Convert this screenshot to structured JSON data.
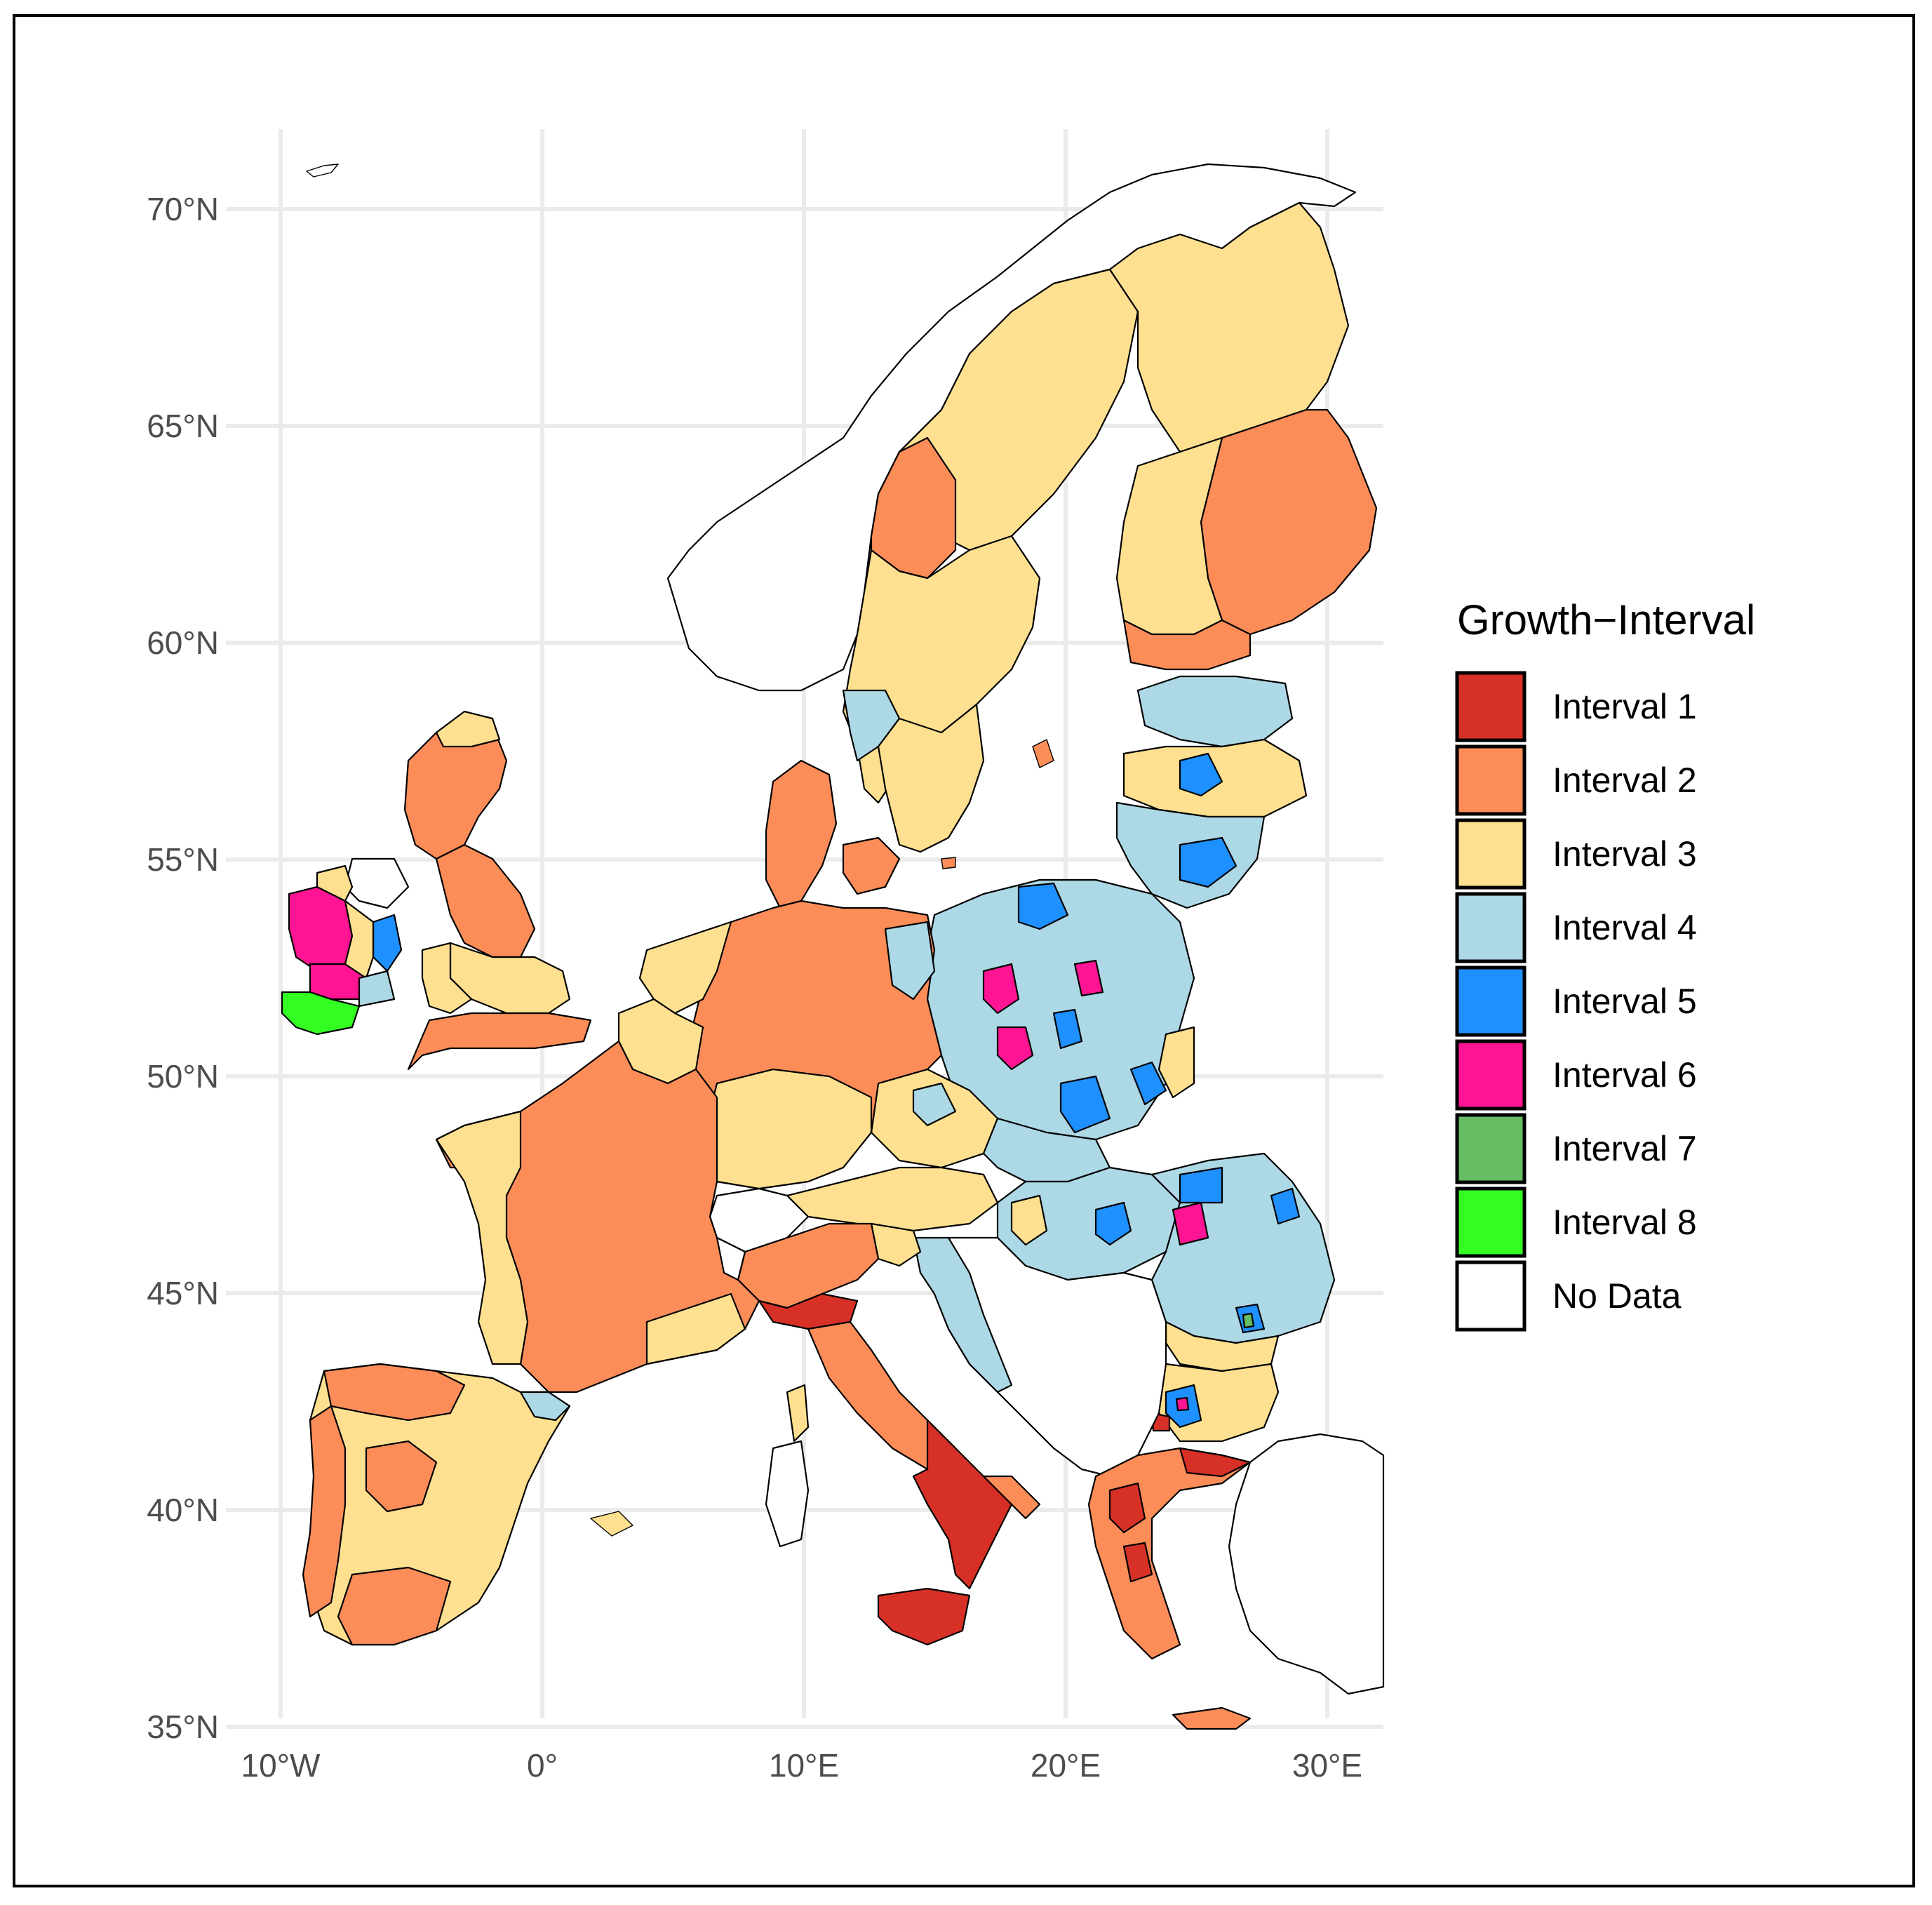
{
  "map": {
    "x_ticks": [
      "10°W",
      "0°",
      "10°E",
      "20°E",
      "30°E"
    ],
    "y_ticks": [
      "70°N",
      "65°N",
      "60°N",
      "55°N",
      "50°N",
      "45°N",
      "40°N",
      "35°N"
    ],
    "x_tick_values": [
      -10,
      0,
      10,
      20,
      30
    ],
    "y_tick_values": [
      70,
      65,
      60,
      55,
      50,
      45,
      40,
      35
    ],
    "lon_range": [
      -11,
      32
    ],
    "lat_range": [
      34.5,
      71.5
    ],
    "grid": true
  },
  "legend": {
    "title": "Growth−Interval",
    "placement": "right",
    "items": [
      {
        "label": "Interval 1",
        "color": "#d73027"
      },
      {
        "label": "Interval 2",
        "color": "#fc8d59"
      },
      {
        "label": "Interval 3",
        "color": "#fee090"
      },
      {
        "label": "Interval 4",
        "color": "#add8e6"
      },
      {
        "label": "Interval 5",
        "color": "#1e90ff"
      },
      {
        "label": "Interval 6",
        "color": "#ff1493"
      },
      {
        "label": "Interval 7",
        "color": "#66bd63"
      },
      {
        "label": "Interval 8",
        "color": "#33ff22"
      },
      {
        "label": "No Data",
        "color": "#ffffff"
      }
    ]
  }
}
